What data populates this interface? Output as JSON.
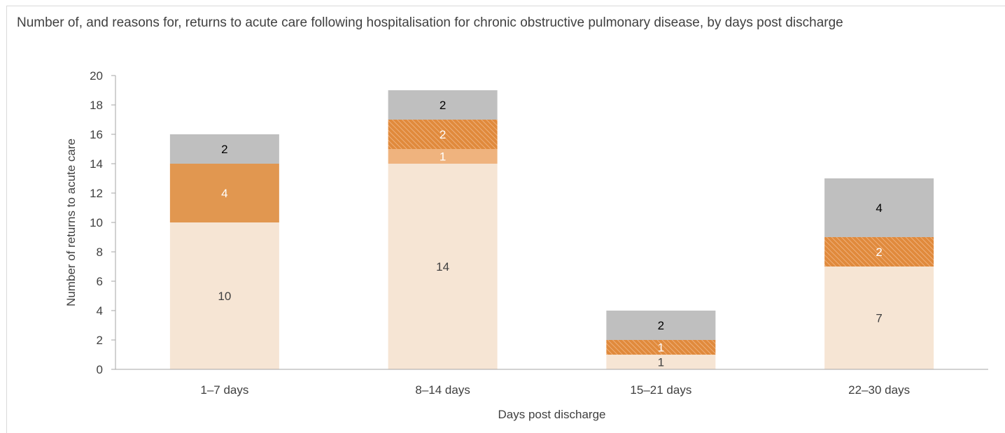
{
  "chart_data": {
    "type": "bar",
    "stacked": true,
    "title": "Number of, and reasons for, returns to acute care following hospitalisation for chronic obstructive pulmonary disease, by days post discharge",
    "xlabel": "Days post discharge",
    "ylabel": "Number of returns to acute care",
    "ylim": [
      0,
      20
    ],
    "yticks": [
      0,
      2,
      4,
      6,
      8,
      10,
      12,
      14,
      16,
      18,
      20
    ],
    "categories": [
      "1–7 days",
      "8–14 days",
      "15–21 days",
      "22–30 days"
    ],
    "legend": "none",
    "grid": false,
    "series": [
      {
        "values": [
          10,
          14,
          1,
          7
        ],
        "labels": [
          "10",
          "14",
          "1",
          "7"
        ],
        "color": "#f6e5d4",
        "label_color": "#404040",
        "pattern": "none"
      },
      {
        "values": [
          0,
          1,
          0,
          0
        ],
        "labels": [
          "",
          "1",
          "",
          ""
        ],
        "color": "#efb37e",
        "label_color": "#ffffff",
        "pattern": "none"
      },
      {
        "values": [
          4,
          0,
          0,
          0
        ],
        "labels": [
          "4",
          "",
          "",
          ""
        ],
        "color": "#e19750",
        "label_color": "#ffffff",
        "pattern": "none"
      },
      {
        "values": [
          0,
          2,
          1,
          2
        ],
        "labels": [
          "",
          "2",
          "1",
          "2"
        ],
        "color": "#e08a3c",
        "label_color": "#ffffff",
        "pattern": "hatch"
      },
      {
        "values": [
          2,
          2,
          2,
          4
        ],
        "labels": [
          "2",
          "2",
          "2",
          "4"
        ],
        "color": "#bfbfbf",
        "label_color": "#000000",
        "pattern": "none"
      }
    ]
  }
}
